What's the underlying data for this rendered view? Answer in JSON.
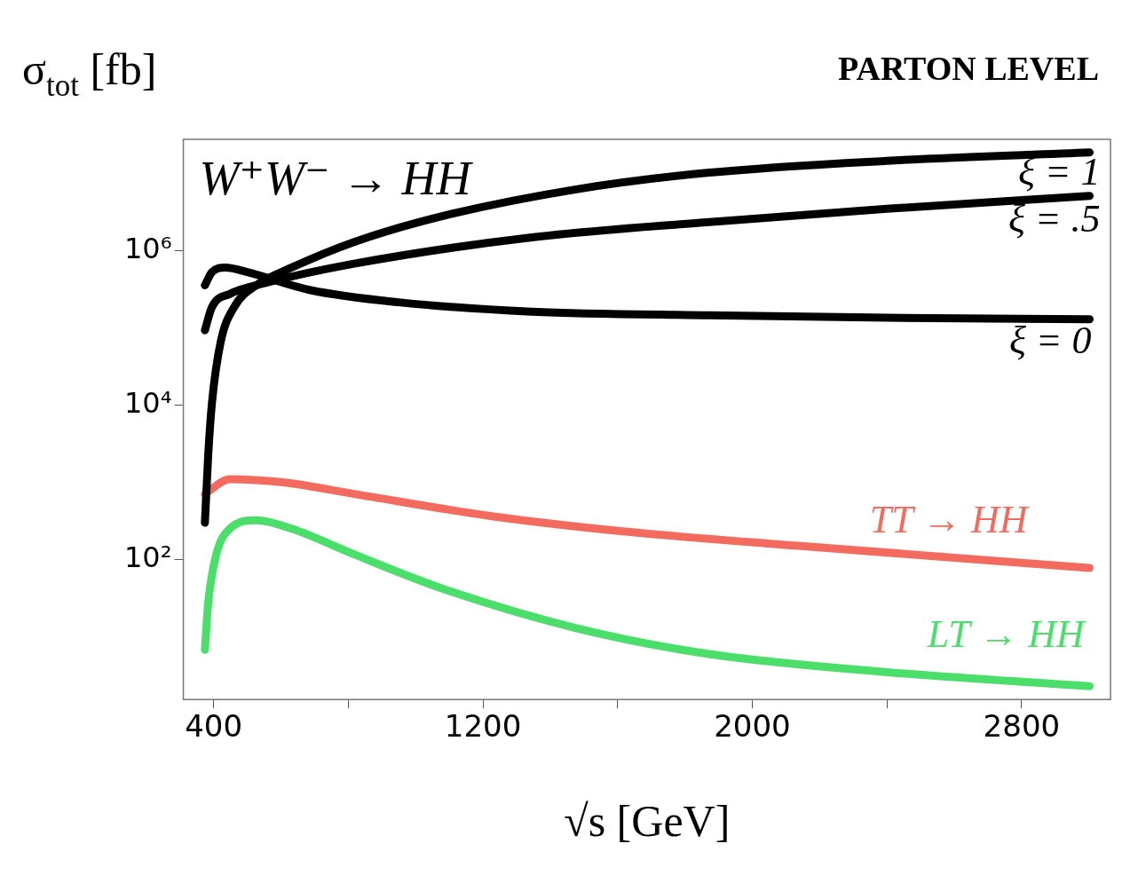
{
  "chart_data": {
    "type": "line",
    "title": "PARTON LEVEL",
    "xlabel": "√s [GeV]",
    "ylabel": "σ$_{tot}$ [fb]",
    "annotations": [
      "W⁺W⁻ → HH"
    ],
    "log": "y",
    "grid": false,
    "legend": false,
    "marker": "none",
    "line_style": "solid",
    "xlim": [
      310,
      3064
    ],
    "xticks": [
      400,
      {
        "value": 800,
        "label": null
      },
      1200,
      {
        "value": 1600,
        "label": null
      },
      2000,
      {
        "value": 2400,
        "label": null
      },
      2800
    ],
    "ylim": [
      1.55,
      27500000
    ],
    "yticks": [
      {
        "value": 100,
        "label": "10²"
      },
      {
        "value": 10000,
        "label": "10⁴"
      },
      {
        "value": 1000000,
        "label": "10⁶"
      }
    ],
    "series": [
      {
        "name": "ξ = 1",
        "color": "#000000",
        "x": [
          374,
          384,
          395,
          421,
          461,
          527,
          632,
          817,
          1081,
          1477,
          1872,
          2400,
          3002
        ],
        "values": [
          300,
          2300,
          10700,
          66000,
          186000,
          355000,
          603000,
          1290000,
          2800000,
          6200000,
          10200000,
          14500000,
          18600000
        ]
      },
      {
        "name": "ξ = .5",
        "color": "#000000",
        "x": [
          374,
          395,
          448,
          553,
          817,
          1345,
          1872,
          2400,
          3002
        ],
        "values": [
          93000,
          186000,
          275000,
          380000,
          676000,
          1480000,
          2340000,
          3470000,
          5100000
        ]
      },
      {
        "name": "ξ = 0",
        "color": "#000000",
        "x": [
          374,
          395,
          435,
          500,
          685,
          949,
          1345,
          1872,
          2400,
          3002
        ],
        "values": [
          355000,
          525000,
          603000,
          525000,
          309000,
          214000,
          162000,
          145000,
          135000,
          129000
        ]
      },
      {
        "name": "TT → HH",
        "color": "#f26b5e",
        "x": [
          374,
          448,
          606,
          817,
          1213,
          1609,
          2136,
          3002
        ],
        "values": [
          708,
          1100,
          1000,
          708,
          372,
          234,
          151,
          78
        ]
      },
      {
        "name": "LT → HH",
        "color": "#4cde6a",
        "x": [
          374,
          384,
          408,
          448,
          527,
          632,
          817,
          1081,
          1477,
          1872,
          2400,
          3002
        ],
        "values": [
          6.8,
          28,
          117,
          251,
          324,
          251,
          117,
          42,
          13,
          6.0,
          3.5,
          2.3
        ]
      }
    ]
  }
}
